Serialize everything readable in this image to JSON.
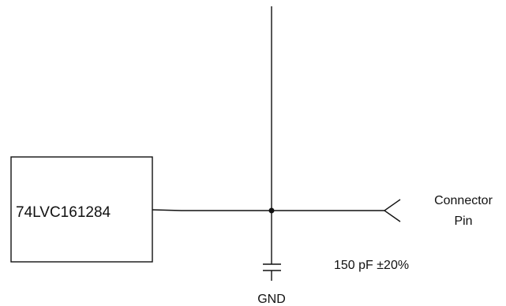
{
  "ic": {
    "part_number": "74LVC161284"
  },
  "connector": {
    "line1": "Connector",
    "line2": "Pin"
  },
  "capacitor": {
    "value": "150 pF ±20%"
  },
  "ground": {
    "label": "GND"
  },
  "colors": {
    "ink": "#111111",
    "background": "#ffffff"
  }
}
